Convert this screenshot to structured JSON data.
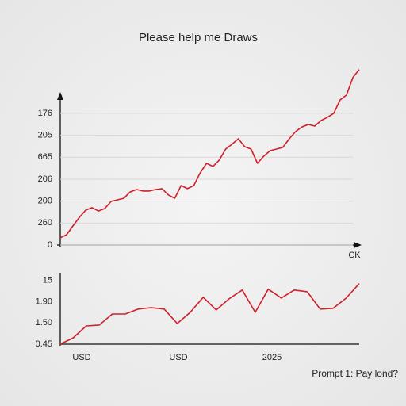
{
  "chart_data": [
    {
      "type": "line",
      "title": "Please help me Draws",
      "x_label": "CK",
      "categories": [
        null,
        null,
        null,
        null,
        null,
        null,
        null,
        null,
        null,
        null,
        null,
        null,
        null,
        null,
        null,
        null,
        null,
        null,
        null,
        null,
        null,
        null,
        null,
        null,
        null,
        null,
        null,
        null,
        null,
        null,
        null,
        null,
        null,
        null,
        null,
        null,
        null,
        null,
        null,
        null,
        null,
        null,
        null,
        null,
        null,
        null,
        null,
        null
      ],
      "values": [
        0.33,
        0.47,
        0.87,
        1.26,
        1.59,
        1.7,
        1.55,
        1.66,
        1.99,
        2.06,
        2.13,
        2.42,
        2.53,
        2.46,
        2.46,
        2.53,
        2.57,
        2.28,
        2.13,
        2.71,
        2.57,
        2.71,
        3.29,
        3.72,
        3.58,
        3.87,
        4.37,
        4.59,
        4.84,
        4.48,
        4.37,
        3.72,
        4.05,
        4.3,
        4.37,
        4.45,
        4.84,
        5.17,
        5.38,
        5.49,
        5.42,
        5.67,
        5.82,
        6.0,
        6.61,
        6.83,
        7.63,
        7.99
      ],
      "color": "#d0202a",
      "ylim": [
        0,
        8.2
      ],
      "yticks": [
        0,
        {
          "value": 1,
          "label": "260"
        },
        {
          "value": 2,
          "label": "200"
        },
        {
          "value": 3,
          "label": "206"
        },
        {
          "value": 4,
          "label": "665"
        },
        {
          "value": 5,
          "label": "205"
        },
        {
          "value": 6,
          "label": "176"
        }
      ],
      "grid": true
    },
    {
      "type": "line",
      "x_labels": [
        "USD",
        "USD",
        "2025"
      ],
      "categories": [
        null,
        null,
        null,
        null,
        null,
        null,
        null,
        null,
        null,
        null,
        null,
        null,
        null,
        null,
        null,
        null,
        null,
        null,
        null,
        null,
        null,
        null,
        null,
        null
      ],
      "values": [
        0,
        0.3,
        0.86,
        0.9,
        1.42,
        1.42,
        1.65,
        1.72,
        1.65,
        0.97,
        1.5,
        2.21,
        1.61,
        2.14,
        2.55,
        1.5,
        2.59,
        2.17,
        2.55,
        2.47,
        1.65,
        1.69,
        2.17,
        2.85
      ],
      "color": "#d0202a",
      "ylim": [
        0,
        3.4
      ],
      "yticks": [
        {
          "value": 0,
          "label": "0.45"
        },
        {
          "value": 1,
          "label": "1.50"
        },
        {
          "value": 2,
          "label": "1.90"
        },
        {
          "value": 3,
          "label": "15"
        }
      ],
      "grid": false
    }
  ],
  "footer": "Prompt 1: Pay lond?"
}
